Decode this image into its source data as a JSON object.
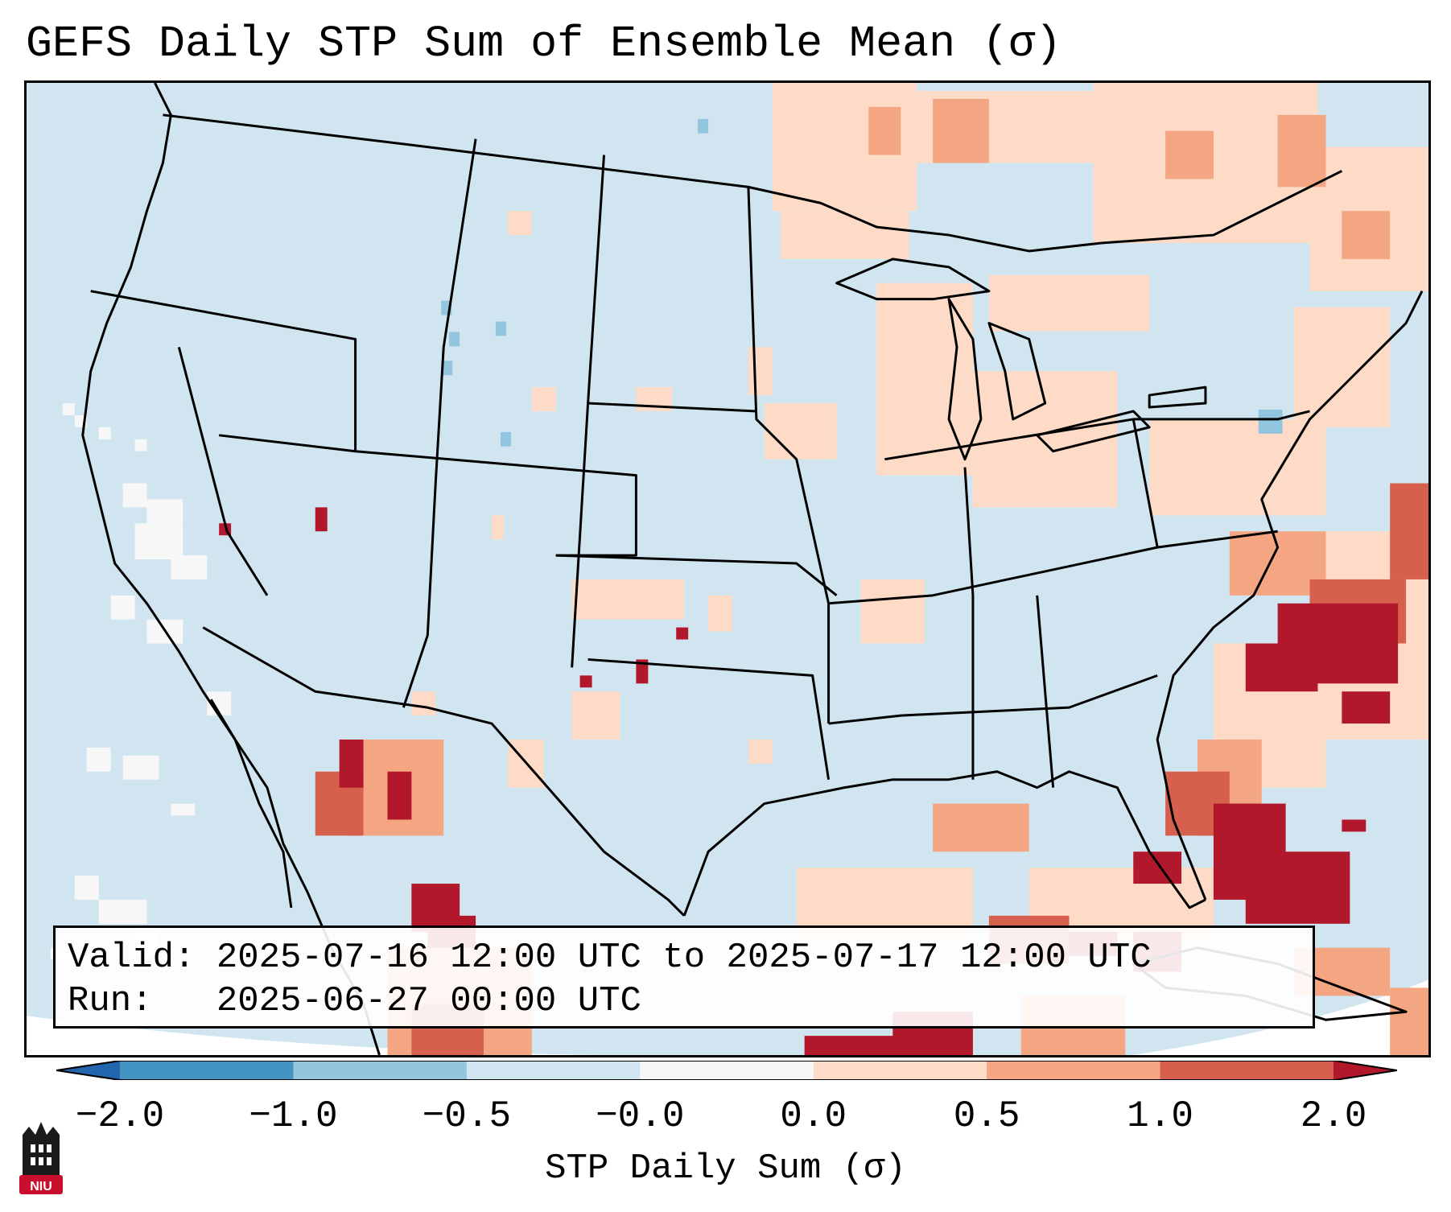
{
  "title": "GEFS Daily STP Sum of Ensemble Mean (σ)",
  "info": {
    "valid_label": "Valid:",
    "valid_range": "2025-07-16 12:00 UTC to 2025-07-17 12:00 UTC",
    "run_label": "Run:",
    "run_time": "2025-06-27 00:00 UTC"
  },
  "colorbar": {
    "label": "STP Daily Sum (σ)",
    "ticks": [
      "−2.0",
      "−1.0",
      "−0.5",
      "−0.0",
      "0.0",
      "0.5",
      "1.0",
      "2.0"
    ],
    "colors": [
      "#2166ac",
      "#4393c3",
      "#92c5de",
      "#d1e5f0",
      "#f7f7f7",
      "#fddbc7",
      "#f4a582",
      "#d6604d",
      "#b2182b"
    ]
  },
  "logo": {
    "text": "NIU",
    "colors": {
      "tower": "#1a1a1a",
      "base": "#c8102e"
    }
  },
  "map": {
    "region": "Contiguous United States with southern Canada, northern Mexico, Gulf of Mexico and western Atlantic",
    "ocean_color": "#d1e5f0",
    "outline_color": "#000000"
  }
}
